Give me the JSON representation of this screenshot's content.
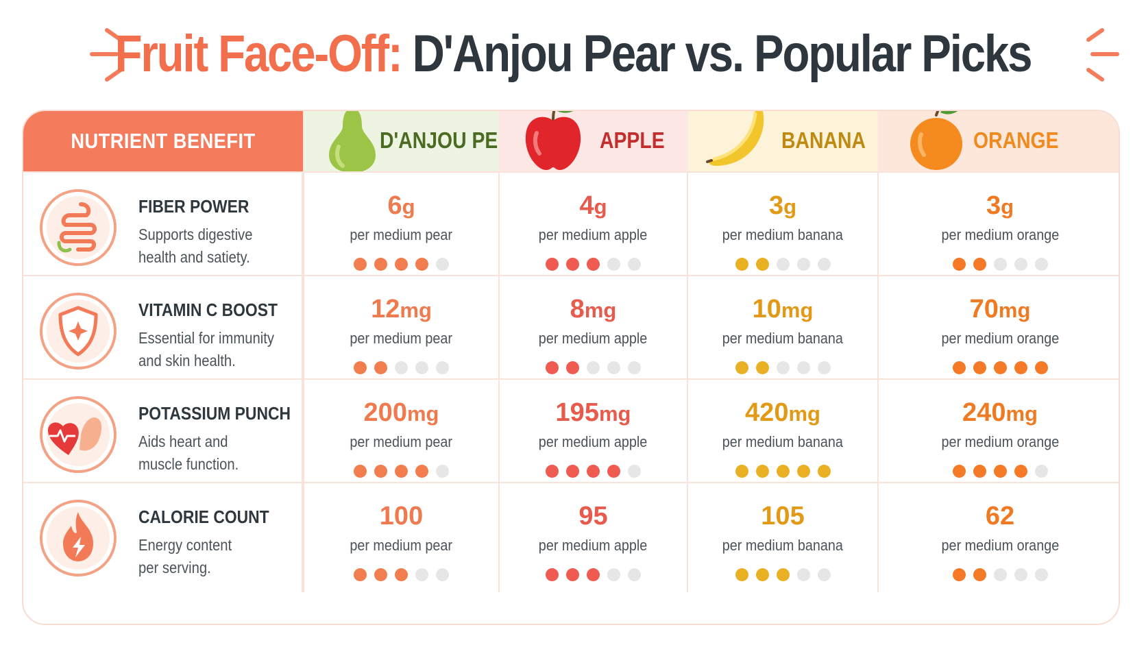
{
  "title": {
    "accent": "Fruit Face-Off:",
    "rest": "D'Anjou Pear vs. Popular Picks"
  },
  "header": {
    "nutrient_label": "NUTRIENT BENEFIT"
  },
  "colors": {
    "coral": "#f47c5c",
    "pear_text": "#4a6b21",
    "pear_value": "#ef7a4d",
    "pear_dot": "#f27d4f",
    "apple_text": "#c22d2d",
    "apple_value": "#e85a4b",
    "apple_dot": "#ef5a51",
    "banana_text": "#bf8a12",
    "banana_value": "#e29a16",
    "banana_dot": "#eab023",
    "orange_text": "#ef8a1f",
    "orange_value": "#f07a22",
    "orange_dot": "#f47a28",
    "empty_dot": "#e6e6e6"
  },
  "fruits": [
    {
      "id": "pear",
      "name": "D'ANJOU PEAR",
      "icon": "pear-icon",
      "unit_word": "per medium pear"
    },
    {
      "id": "apple",
      "name": "APPLE",
      "icon": "apple-icon",
      "unit_word": "per medium apple"
    },
    {
      "id": "banana",
      "name": "BANANA",
      "icon": "banana-icon",
      "unit_word": "per medium banana"
    },
    {
      "id": "orange",
      "name": "ORANGE",
      "icon": "orange-icon",
      "unit_word": "per medium orange"
    }
  ],
  "rows": [
    {
      "id": "fiber",
      "icon": "intestine-icon",
      "title": "FIBER POWER",
      "desc_line1": "Supports digestive",
      "desc_line2": "health and satiety.",
      "unit": "g",
      "values": [
        {
          "num": "6",
          "sub": "per medium pear",
          "rating": 4
        },
        {
          "num": "4",
          "sub": "per medium apple",
          "rating": 3
        },
        {
          "num": "3",
          "sub": "per medium banana",
          "rating": 2
        },
        {
          "num": "3",
          "sub": "per medium orange",
          "rating": 2
        }
      ]
    },
    {
      "id": "vitc",
      "icon": "shield-icon",
      "title": "VITAMIN C BOOST",
      "desc_line1": "Essential for immunity",
      "desc_line2": "and skin health.",
      "unit": "mg",
      "values": [
        {
          "num": "12",
          "sub": "per medium pear",
          "rating": 2
        },
        {
          "num": "8",
          "sub": "per medium apple",
          "rating": 2
        },
        {
          "num": "10",
          "sub": "per medium banana",
          "rating": 2
        },
        {
          "num": "70",
          "sub": "per medium orange",
          "rating": 5
        }
      ]
    },
    {
      "id": "potassium",
      "icon": "heart-muscle-icon",
      "title": "POTASSIUM PUNCH",
      "desc_line1": "Aids heart and",
      "desc_line2": "muscle function.",
      "unit": "mg",
      "values": [
        {
          "num": "200",
          "sub": "per medium pear",
          "rating": 4
        },
        {
          "num": "195",
          "sub": "per medium apple",
          "rating": 4
        },
        {
          "num": "420",
          "sub": "per medium banana",
          "rating": 5
        },
        {
          "num": "240",
          "sub": "per medium orange",
          "rating": 4
        }
      ]
    },
    {
      "id": "calories",
      "icon": "flame-icon",
      "title": "CALORIE COUNT",
      "desc_line1": "Energy content",
      "desc_line2": "per serving.",
      "unit": "",
      "values": [
        {
          "num": "100",
          "sub": "per medium pear",
          "rating": 3
        },
        {
          "num": "95",
          "sub": "per medium apple",
          "rating": 3
        },
        {
          "num": "105",
          "sub": "per medium banana",
          "rating": 3
        },
        {
          "num": "62",
          "sub": "per medium orange",
          "rating": 2
        }
      ]
    }
  ]
}
